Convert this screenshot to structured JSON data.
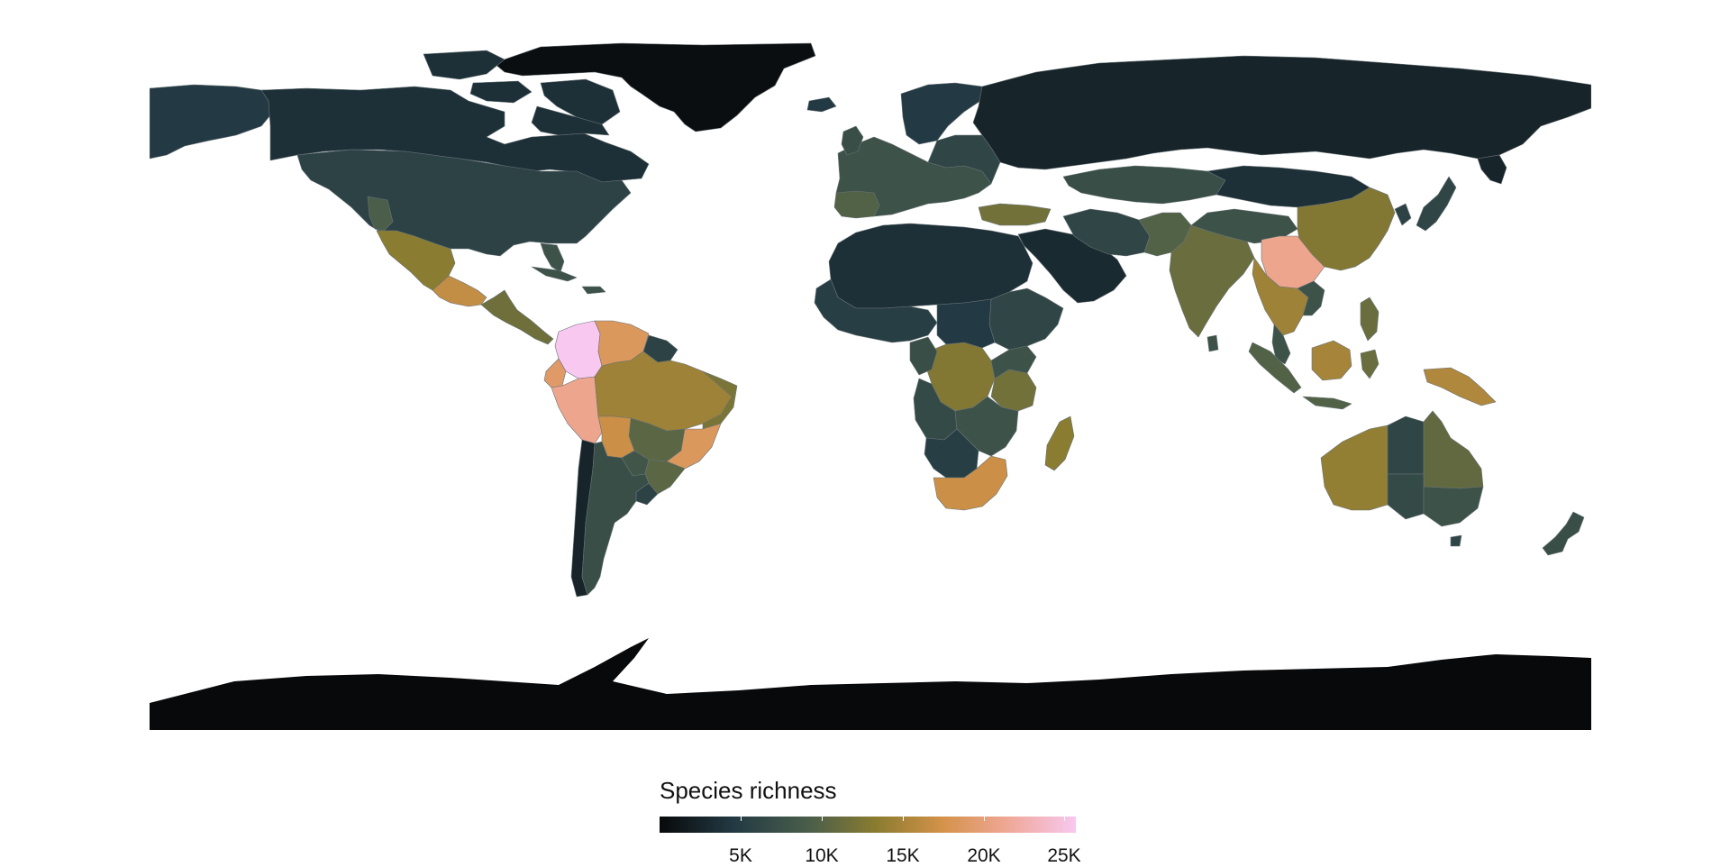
{
  "legend": {
    "title": "Species richness",
    "min": 0,
    "max": 25700,
    "ticks": [
      {
        "value": 5000,
        "label": "5K"
      },
      {
        "value": 10000,
        "label": "10K"
      },
      {
        "value": 15000,
        "label": "15K"
      },
      {
        "value": 20000,
        "label": "20K"
      },
      {
        "value": 25000,
        "label": "25K"
      }
    ],
    "stops": [
      {
        "t": 0.0,
        "color": "#08090a"
      },
      {
        "t": 0.18,
        "color": "#233a44"
      },
      {
        "t": 0.36,
        "color": "#4a5e4a"
      },
      {
        "t": 0.52,
        "color": "#8a7c30"
      },
      {
        "t": 0.68,
        "color": "#d4924a"
      },
      {
        "t": 0.84,
        "color": "#f0a898"
      },
      {
        "t": 1.0,
        "color": "#f8c8f0"
      }
    ]
  },
  "map_data": {
    "type": "choropleth",
    "variable": "Species richness",
    "regions": [
      {
        "name": "Colombia",
        "value": 25000
      },
      {
        "name": "China (Yunnan region)",
        "value": 21000
      },
      {
        "name": "Peru",
        "value": 20500
      },
      {
        "name": "Ecuador",
        "value": 18500
      },
      {
        "name": "Venezuela",
        "value": 18000
      },
      {
        "name": "Brazil (southeast)",
        "value": 18500
      },
      {
        "name": "Bolivia",
        "value": 17000
      },
      {
        "name": "South Africa",
        "value": 17500
      },
      {
        "name": "Mexico (south)",
        "value": 16000
      },
      {
        "name": "Papua New Guinea",
        "value": 15000
      },
      {
        "name": "Brazil (Amazon)",
        "value": 14000
      },
      {
        "name": "Mexico",
        "value": 13500
      },
      {
        "name": "Dem. Rep. Congo",
        "value": 12500
      },
      {
        "name": "Madagascar",
        "value": 13000
      },
      {
        "name": "Australia (west)",
        "value": 12500
      },
      {
        "name": "Indonesia",
        "value": 12000
      },
      {
        "name": "India",
        "value": 10500
      },
      {
        "name": "Tanzania",
        "value": 10500
      },
      {
        "name": "Turkey",
        "value": 11000
      },
      {
        "name": "Australia (Queensland)",
        "value": 9500
      },
      {
        "name": "Argentina (north)",
        "value": 7500
      },
      {
        "name": "Europe",
        "value": 6500
      },
      {
        "name": "United States",
        "value": 5500
      },
      {
        "name": "Canada",
        "value": 3500
      },
      {
        "name": "Russia",
        "value": 2500
      },
      {
        "name": "Sahara region",
        "value": 2000
      },
      {
        "name": "Greenland",
        "value": 500
      },
      {
        "name": "Antarctica",
        "value": 100
      }
    ]
  }
}
